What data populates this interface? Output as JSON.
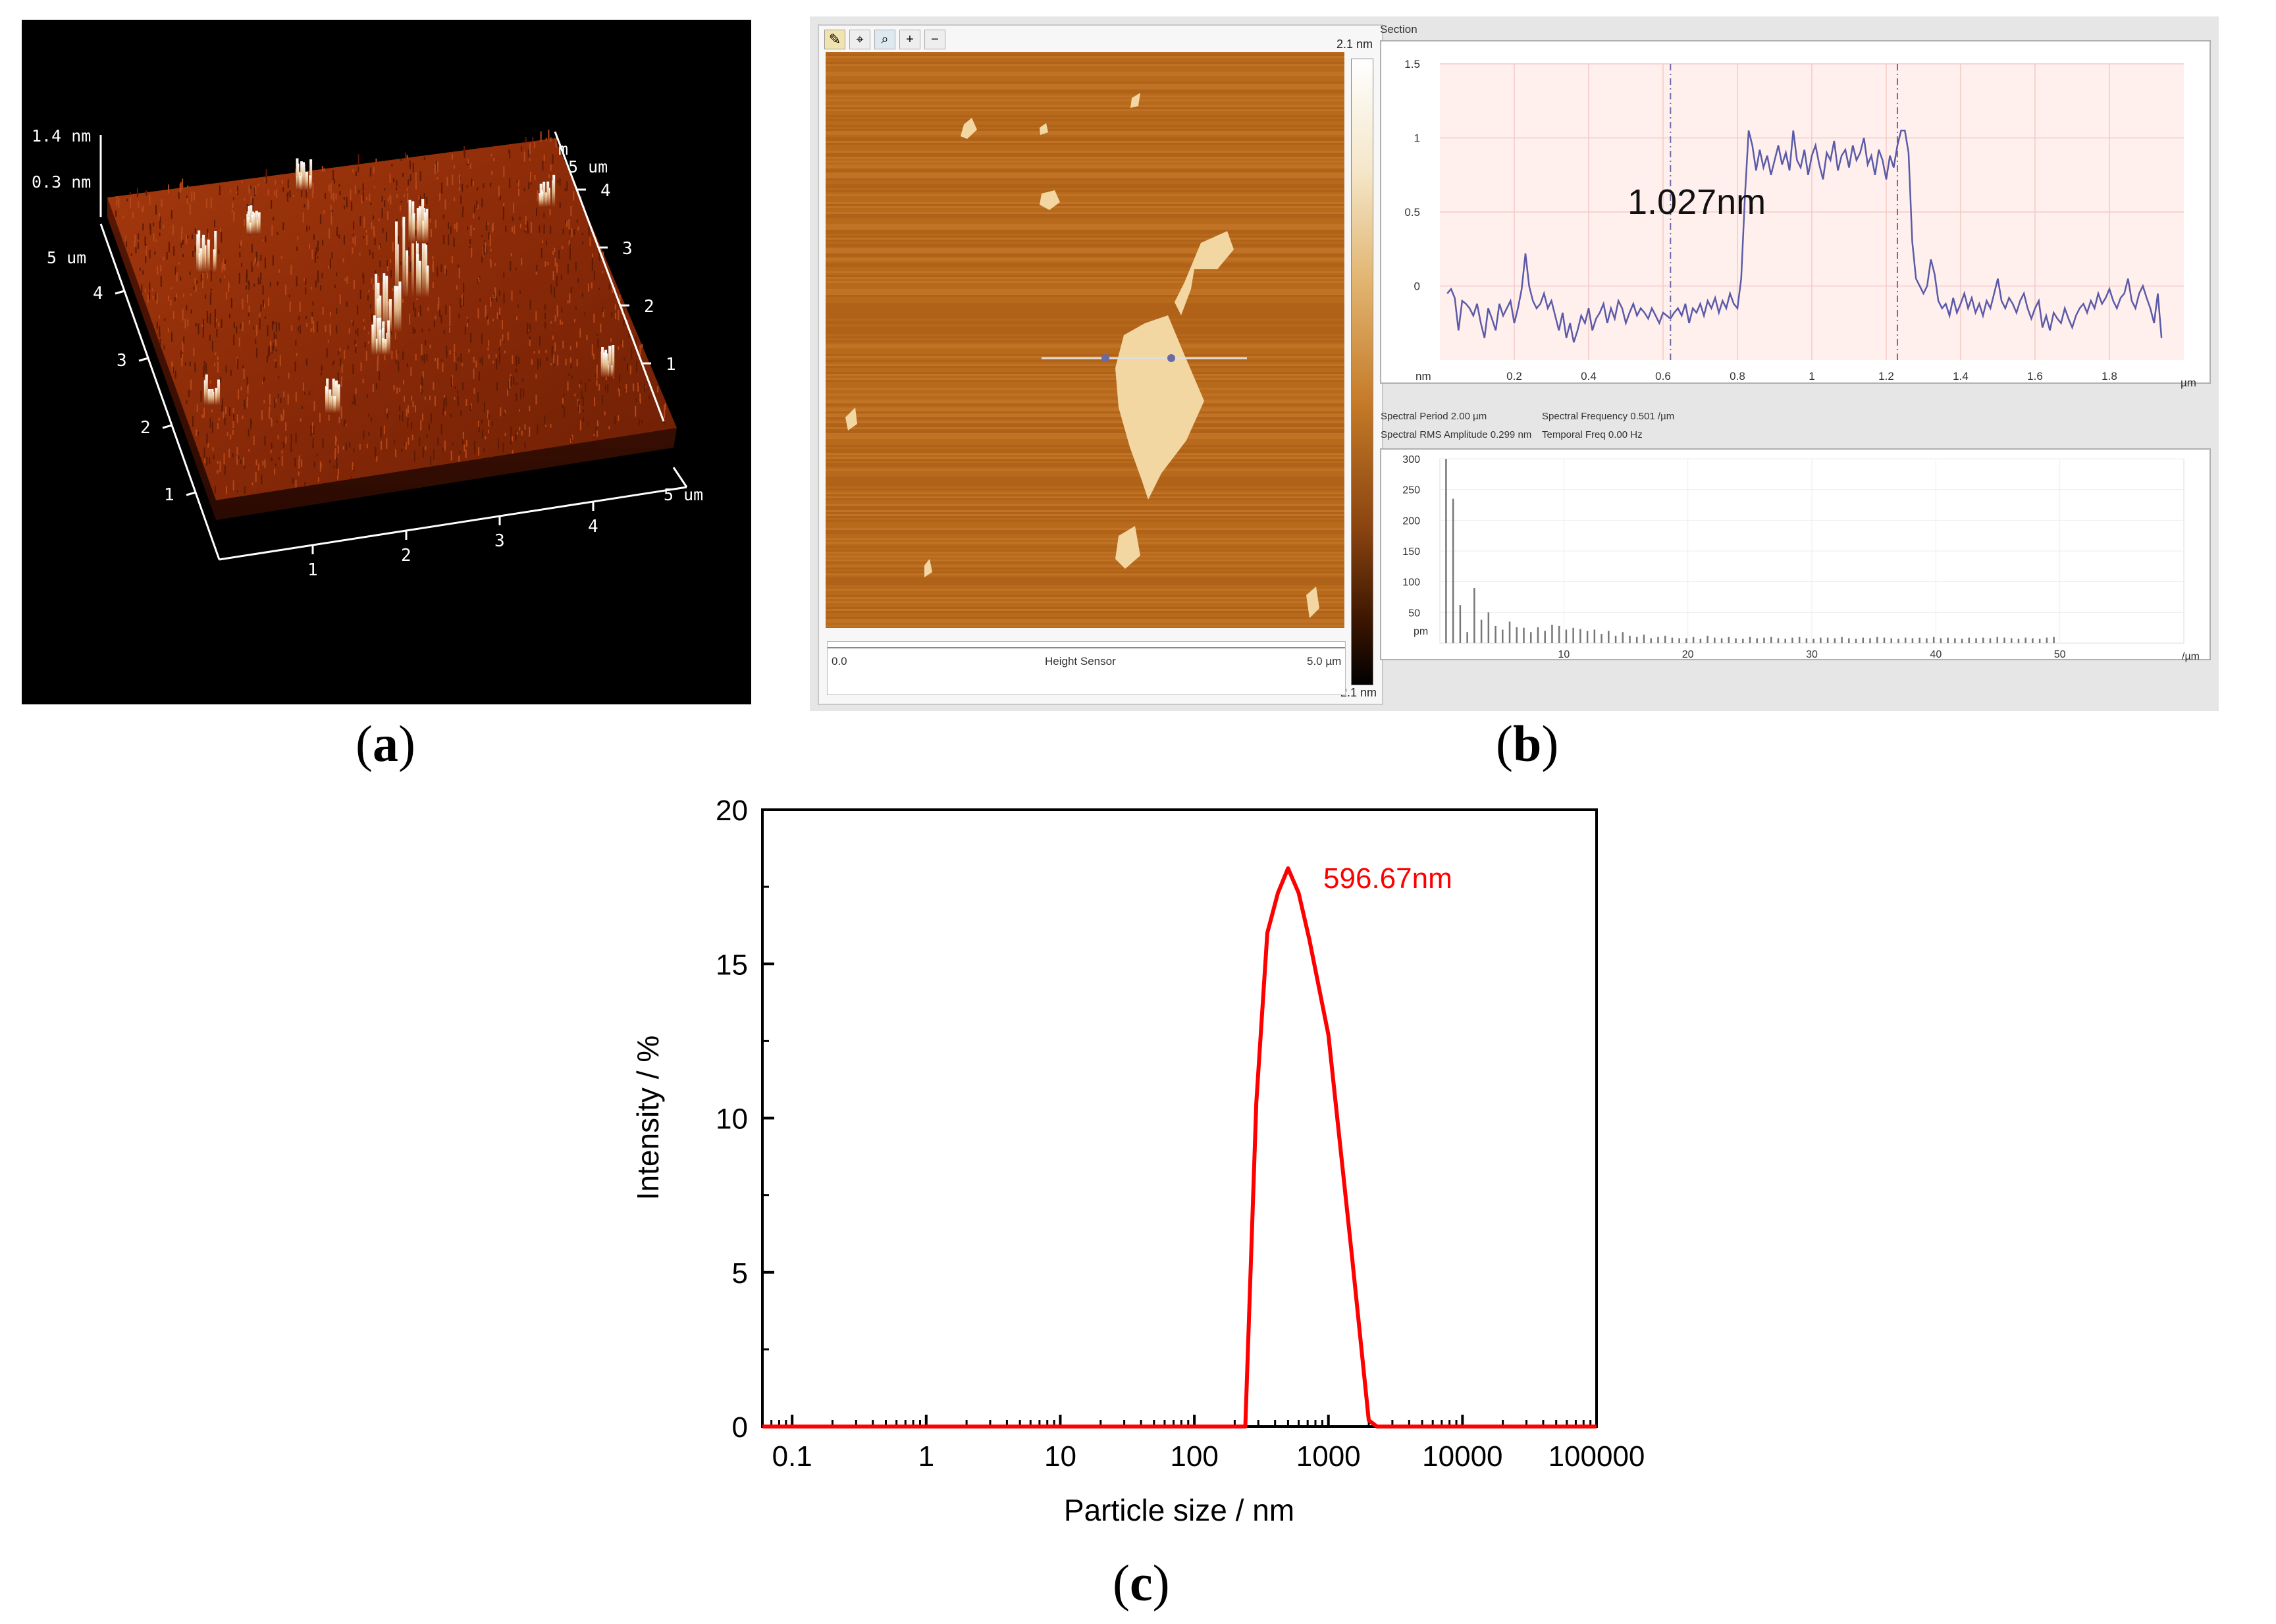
{
  "colors": {
    "afm_background": "#000000",
    "afm_surface": "#8a2a08",
    "afm_image": "#b86a1c",
    "profile_plot_bg": "#fff0ee",
    "profile_line": "#5a5aa8",
    "dls_line": "#ff0000",
    "window_bg": "#e6e6e6"
  },
  "panel_a": {
    "label_open": "(",
    "label_letter": "a",
    "label_close": ")",
    "z_top_label": "1.4 nm",
    "z_second_label": "0.3 nm",
    "y_axis_end_label": "5 um",
    "x_axis_end_label": "5 um",
    "right_top_label": "5 um",
    "right_top_prefix": "m",
    "y_ticks": [
      "1",
      "2",
      "3",
      "4"
    ],
    "x_ticks": [
      "1",
      "2",
      "3",
      "4"
    ],
    "right_ticks": [
      "1",
      "2",
      "3",
      "4"
    ]
  },
  "panel_b": {
    "label_open": "(",
    "label_letter": "b",
    "label_close": ")",
    "image_window": {
      "toolbar_icons": [
        "pencil-icon",
        "crosshair-icon",
        "zoom-icon",
        "zoom-in-icon",
        "zoom-out-icon"
      ],
      "colorbar_top": "2.1 nm",
      "colorbar_bottom": "-2.1 nm",
      "scale_left": "0.0",
      "scale_center": "Height Sensor",
      "scale_right": "5.0 µm"
    },
    "section": {
      "title": "Section",
      "height_annotation": "1.027nm",
      "y_ticks": [
        "1.5",
        "1",
        "0.5",
        "0"
      ],
      "y_unit": "nm",
      "x_ticks": [
        "0.2",
        "0.4",
        "0.6",
        "0.8",
        "1",
        "1.2",
        "1.4",
        "1.6",
        "1.8"
      ],
      "x_unit": "µm",
      "profile_x": [
        0.02,
        0.03,
        0.04,
        0.05,
        0.06,
        0.07,
        0.08,
        0.09,
        0.1,
        0.11,
        0.12,
        0.13,
        0.14,
        0.15,
        0.16,
        0.17,
        0.18,
        0.19,
        0.2,
        0.21,
        0.22,
        0.23,
        0.24,
        0.25,
        0.26,
        0.27,
        0.28,
        0.29,
        0.3,
        0.31,
        0.32,
        0.33,
        0.34,
        0.35,
        0.36,
        0.37,
        0.38,
        0.39,
        0.4,
        0.41,
        0.42,
        0.43,
        0.44,
        0.45,
        0.46,
        0.47,
        0.48,
        0.49,
        0.5,
        0.51,
        0.52,
        0.53,
        0.54,
        0.55,
        0.56,
        0.57,
        0.58,
        0.59,
        0.6,
        0.61,
        0.62,
        0.63,
        0.64,
        0.65,
        0.66,
        0.67,
        0.68,
        0.69,
        0.7,
        0.71,
        0.72,
        0.73,
        0.74,
        0.75,
        0.76,
        0.77,
        0.78,
        0.79,
        0.8,
        0.81,
        0.82,
        0.83,
        0.84,
        0.85,
        0.86,
        0.87,
        0.88,
        0.89,
        0.9,
        0.91,
        0.92,
        0.93,
        0.94,
        0.95,
        0.96,
        0.97,
        0.98,
        0.99,
        1.0,
        1.01,
        1.02,
        1.03,
        1.04,
        1.05,
        1.06,
        1.07,
        1.08,
        1.09,
        1.1,
        1.11,
        1.12,
        1.13,
        1.14,
        1.15,
        1.16,
        1.17,
        1.18,
        1.19,
        1.2,
        1.21,
        1.22,
        1.23,
        1.24,
        1.25,
        1.26,
        1.27,
        1.28,
        1.29,
        1.3,
        1.31,
        1.32,
        1.33,
        1.34,
        1.35,
        1.36,
        1.37,
        1.38,
        1.39,
        1.4,
        1.41,
        1.42,
        1.43,
        1.44,
        1.45,
        1.46,
        1.47,
        1.48,
        1.49,
        1.5,
        1.51,
        1.52,
        1.53,
        1.54,
        1.55,
        1.56,
        1.57,
        1.58,
        1.59,
        1.6,
        1.61,
        1.62,
        1.63,
        1.64,
        1.65,
        1.66,
        1.67,
        1.68,
        1.69,
        1.7,
        1.71,
        1.72,
        1.73,
        1.74,
        1.75,
        1.76,
        1.77,
        1.78,
        1.79,
        1.8,
        1.81,
        1.82,
        1.83,
        1.84,
        1.85,
        1.86,
        1.87,
        1.88,
        1.89,
        1.9,
        1.91,
        1.92,
        1.93,
        1.94,
        1.95,
        1.96,
        1.97,
        1.98,
        1.99
      ],
      "profile_y": [
        -0.05,
        -0.02,
        -0.08,
        -0.3,
        -0.1,
        -0.12,
        -0.15,
        -0.2,
        -0.12,
        -0.25,
        -0.35,
        -0.15,
        -0.22,
        -0.3,
        -0.12,
        -0.2,
        -0.15,
        -0.1,
        -0.25,
        -0.15,
        -0.02,
        0.22,
        0.0,
        -0.1,
        -0.15,
        -0.12,
        -0.05,
        -0.15,
        -0.1,
        -0.2,
        -0.3,
        -0.18,
        -0.35,
        -0.25,
        -0.38,
        -0.3,
        -0.2,
        -0.25,
        -0.15,
        -0.3,
        -0.22,
        -0.18,
        -0.12,
        -0.25,
        -0.15,
        -0.22,
        -0.1,
        -0.15,
        -0.25,
        -0.18,
        -0.12,
        -0.2,
        -0.15,
        -0.18,
        -0.22,
        -0.15,
        -0.2,
        -0.25,
        -0.18,
        -0.2,
        -0.22,
        -0.18,
        -0.15,
        -0.2,
        -0.12,
        -0.25,
        -0.15,
        -0.18,
        -0.12,
        -0.2,
        -0.1,
        -0.15,
        -0.08,
        -0.18,
        -0.1,
        -0.15,
        -0.05,
        -0.12,
        -0.15,
        0.05,
        0.6,
        1.05,
        0.95,
        0.78,
        0.92,
        0.8,
        0.88,
        0.75,
        0.85,
        0.95,
        0.82,
        0.9,
        0.78,
        1.05,
        0.85,
        0.8,
        0.92,
        0.75,
        0.88,
        0.95,
        0.82,
        0.72,
        0.9,
        0.85,
        0.98,
        0.78,
        0.88,
        0.92,
        0.8,
        0.95,
        0.85,
        0.9,
        1.0,
        0.82,
        0.88,
        0.75,
        0.92,
        0.85,
        0.72,
        0.88,
        0.8,
        0.95,
        1.05,
        1.05,
        0.9,
        0.3,
        0.05,
        0.0,
        -0.05,
        0.0,
        0.18,
        0.08,
        -0.1,
        -0.15,
        -0.12,
        -0.2,
        -0.08,
        -0.18,
        -0.12,
        -0.05,
        -0.15,
        -0.08,
        -0.18,
        -0.12,
        -0.2,
        -0.1,
        -0.15,
        -0.05,
        0.05,
        -0.1,
        -0.15,
        -0.08,
        -0.12,
        -0.18,
        -0.1,
        -0.05,
        -0.15,
        -0.22,
        -0.15,
        -0.1,
        -0.28,
        -0.2,
        -0.3,
        -0.18,
        -0.22,
        -0.25,
        -0.15,
        -0.22,
        -0.28,
        -0.2,
        -0.15,
        -0.12,
        -0.18,
        -0.1,
        -0.15,
        -0.05,
        -0.12,
        -0.08,
        -0.02,
        -0.1,
        -0.15,
        -0.08,
        -0.05,
        0.05,
        -0.1,
        -0.15,
        -0.05,
        0.0,
        -0.08,
        -0.15,
        -0.25,
        -0.05,
        -0.35
      ],
      "cursor_x": [
        0.62,
        1.23
      ],
      "info_period": "Spectral Period 2.00 µm",
      "info_frequency": "Spectral Frequency 0.501 /µm",
      "info_rms": "Spectral RMS Amplitude 0.299 nm",
      "info_temporal": "Temporal Freq 0.00 Hz",
      "spectrum_y_ticks": [
        "300",
        "250",
        "200",
        "150",
        "100",
        "50"
      ],
      "spectrum_y_unit": "pm",
      "spectrum_x_ticks": [
        "10",
        "20",
        "30",
        "40",
        "50"
      ],
      "spectrum_x_unit": "/µm",
      "spectrum_values": [
        299,
        235,
        62,
        18,
        90,
        38,
        50,
        28,
        22,
        35,
        26,
        25,
        18,
        26,
        20,
        30,
        28,
        22,
        25,
        23,
        20,
        22,
        15,
        20,
        12,
        18,
        12,
        10,
        14,
        8,
        10,
        12,
        9,
        8,
        8,
        10,
        7,
        12,
        9,
        8,
        10,
        8,
        7,
        10,
        8,
        9,
        10,
        8,
        7,
        9,
        10,
        8,
        7,
        9,
        9,
        8,
        10,
        8,
        7,
        9,
        8,
        10,
        9,
        8,
        7,
        9,
        8,
        9,
        8,
        10,
        8,
        9,
        8,
        7,
        9,
        8,
        9,
        8,
        10,
        9,
        8,
        7,
        9,
        8,
        7,
        9,
        10
      ]
    }
  },
  "panel_c": {
    "label_open": "(",
    "label_letter": "c",
    "label_close": ")",
    "chart_data": {
      "type": "line",
      "x_scale": "log",
      "xlabel": "Particle size / nm",
      "ylabel": "Intensity / %",
      "xlim": [
        0.06,
        100000
      ],
      "ylim": [
        0,
        20
      ],
      "x_tick_labels": [
        "0.1",
        "1",
        "10",
        "100",
        "1000",
        "10000",
        "100000"
      ],
      "x_tick_values": [
        0.1,
        1,
        10,
        100,
        1000,
        10000,
        100000
      ],
      "y_tick_labels": [
        "0",
        "5",
        "10",
        "15",
        "20"
      ],
      "y_tick_values": [
        0,
        5,
        10,
        15,
        20
      ],
      "series": [
        {
          "x": [
            0.06,
            240,
            290,
            350,
            420,
            500,
            600,
            720,
            1000,
            1500,
            2000,
            2300,
            100000
          ],
          "y": [
            0,
            0,
            10.5,
            16.0,
            17.3,
            18.1,
            17.3,
            15.8,
            12.7,
            5.5,
            0.2,
            0,
            0
          ]
        }
      ],
      "annotation": "596.67nm",
      "annotation_x": 596.67,
      "annotation_y": 18.1,
      "grid": false
    }
  }
}
